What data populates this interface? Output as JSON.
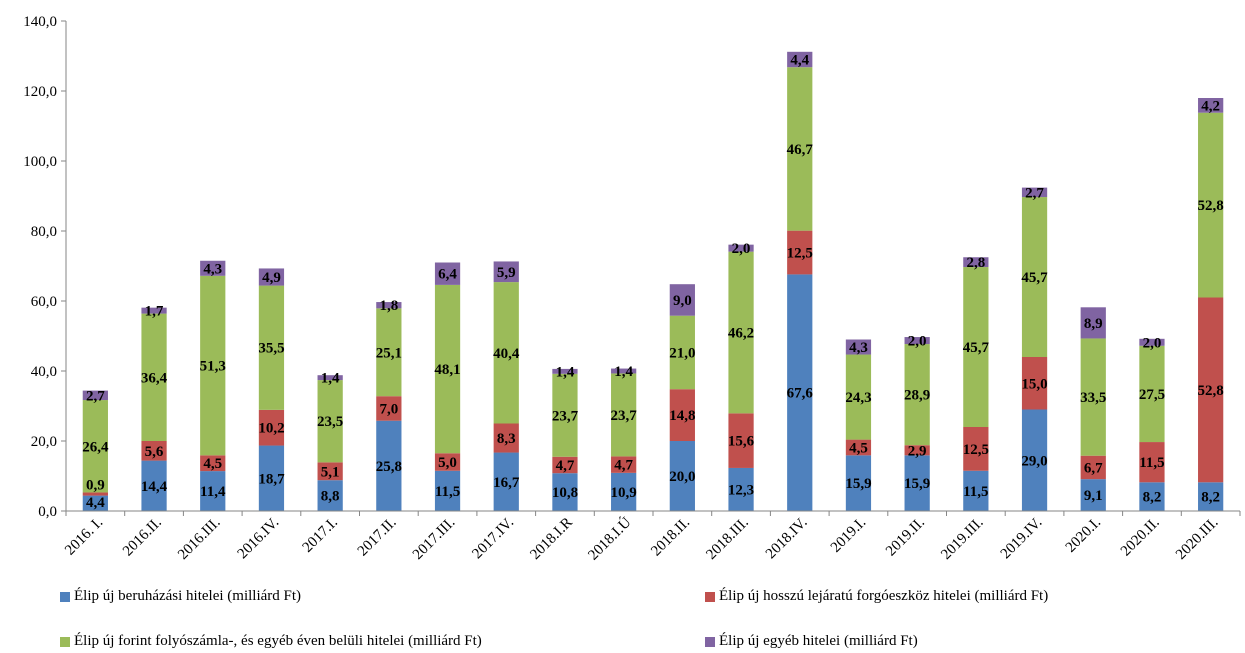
{
  "chart_data": {
    "type": "bar",
    "stacked": true,
    "categories": [
      "2016. I.",
      "2016.II.",
      "2016.III.",
      "2016.IV.",
      "2017.I.",
      "2017.II.",
      "2017.III.",
      "2017.IV.",
      "2018.I.R",
      "2018.I.Ú",
      "2018.II.",
      "2018.III.",
      "2018.IV.",
      "2019.I.",
      "2019.II.",
      "2019.III.",
      "2019.IV.",
      "2020.I.",
      "2020.II.",
      "2020.III."
    ],
    "series": [
      {
        "name": "Élip új beruházási hitelei (milliárd Ft)",
        "color": "#4f81bd",
        "values": [
          4.4,
          14.4,
          11.4,
          18.7,
          8.8,
          25.8,
          11.5,
          16.7,
          10.8,
          10.9,
          20.0,
          12.3,
          67.6,
          15.9,
          15.9,
          11.5,
          29.0,
          9.1,
          8.2,
          8.2
        ],
        "labels": [
          "4,4",
          "14,4",
          "11,4",
          "18,7",
          "8,8",
          "25,8",
          "11,5",
          "16,7",
          "10,8",
          "10,9",
          "20,0",
          "12,3",
          "67,6",
          "15,9",
          "15,9",
          "11,5",
          "29,0",
          "9,1",
          "8,2",
          "8,2"
        ]
      },
      {
        "name": "Élip új hosszú lejáratú forgóeszköz hitelei (milliárd Ft)",
        "color": "#c0504d",
        "values": [
          0.9,
          5.6,
          4.5,
          10.2,
          5.1,
          7.0,
          5.0,
          8.3,
          4.7,
          4.7,
          14.8,
          15.6,
          12.5,
          4.5,
          2.9,
          12.5,
          15.0,
          6.7,
          11.5,
          52.8
        ],
        "labels": [
          "0,9",
          "5,6",
          "4,5",
          "10,2",
          "5,1",
          "7,0",
          "5,0",
          "8,3",
          "4,7",
          "4,7",
          "14,8",
          "15,6",
          "12,5",
          "4,5",
          "2,9",
          "12,5",
          "15,0",
          "6,7",
          "11,5",
          "52,8"
        ]
      },
      {
        "name": "Élip új forint folyószámla-, és egyéb éven belüli hitelei (milliárd Ft)",
        "color": "#9bbb59",
        "values": [
          26.4,
          36.4,
          51.3,
          35.5,
          23.5,
          25.1,
          48.1,
          40.4,
          23.7,
          23.7,
          21.0,
          46.2,
          46.7,
          24.3,
          28.9,
          45.7,
          45.7,
          33.5,
          27.5,
          52.8
        ],
        "labels": [
          "26,4",
          "36,4",
          "51,3",
          "35,5",
          "23,5",
          "25,1",
          "48,1",
          "40,4",
          "23,7",
          "23,7",
          "21,0",
          "46,2",
          "46,7",
          "24,3",
          "28,9",
          "45,7",
          "45,7",
          "33,5",
          "27,5",
          "52,8"
        ]
      },
      {
        "name": "Élip új egyéb hitelei (milliárd Ft)",
        "color": "#8064a2",
        "values": [
          2.7,
          1.7,
          4.3,
          4.9,
          1.4,
          1.8,
          6.4,
          5.9,
          1.4,
          1.4,
          9.0,
          2.0,
          4.4,
          4.3,
          2.0,
          2.8,
          2.7,
          8.9,
          2.0,
          4.2
        ],
        "labels": [
          "2,7",
          "1,7",
          "4,3",
          "4,9",
          "1,4",
          "1,8",
          "6,4",
          "5,9",
          "1,4",
          "1,4",
          "9,0",
          "2,0",
          "4,4",
          "4,3",
          "2,0",
          "2,8",
          "2,7",
          "8,9",
          "2,0",
          "4,2"
        ]
      }
    ],
    "ylim": [
      0,
      140
    ],
    "yticks": [
      "0,0",
      "20,0",
      "40,0",
      "60,0",
      "80,0",
      "100,0",
      "120,0",
      "140,0"
    ],
    "grid": false,
    "legend_position": "bottom"
  }
}
